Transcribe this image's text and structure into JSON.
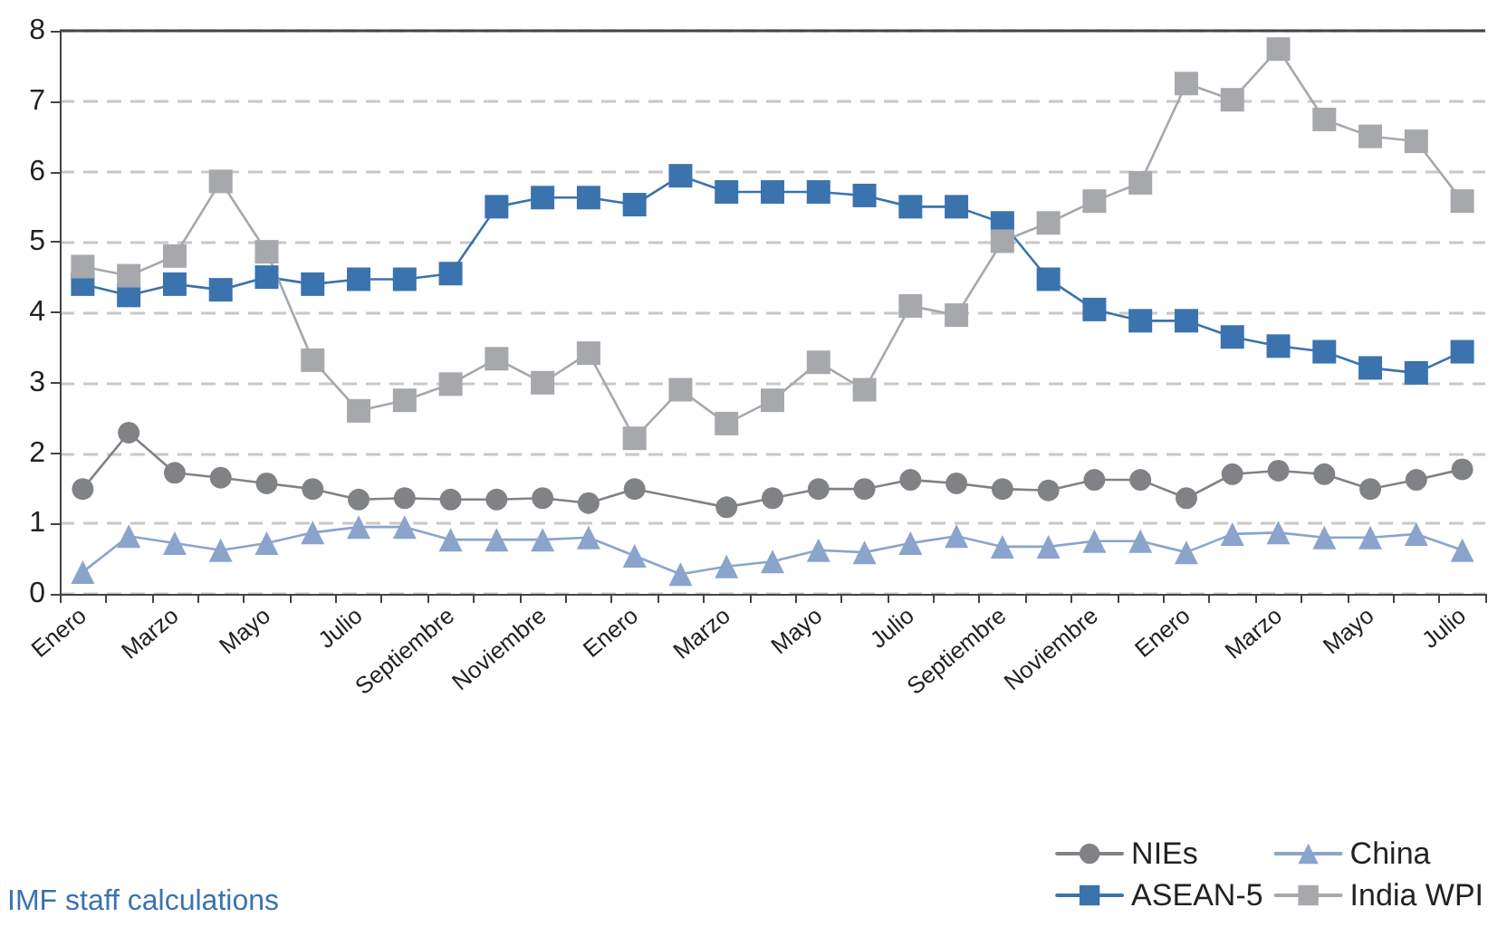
{
  "chart_data": {
    "type": "line",
    "categories": [
      "Enero",
      null,
      "Marzo",
      null,
      "Mayo",
      null,
      "Julio",
      null,
      "Septiembre",
      null,
      "Noviembre",
      null,
      "Enero",
      null,
      "Marzo",
      null,
      "Mayo",
      null,
      "Julio",
      null,
      "Septiembre",
      null,
      "Noviembre",
      null,
      "Enero",
      null,
      "Marzo",
      null,
      "Mayo",
      null,
      "Julio"
    ],
    "series": [
      {
        "name": "NIEs",
        "color": "#808285",
        "marker": "circle",
        "values": [
          1.49,
          2.29,
          1.72,
          1.65,
          1.57,
          1.49,
          1.34,
          1.36,
          1.34,
          1.34,
          1.36,
          1.29,
          1.49,
          null,
          1.23,
          1.36,
          1.49,
          1.49,
          1.62,
          1.57,
          1.49,
          1.47,
          1.62,
          1.62,
          1.36,
          1.7,
          1.75,
          1.7,
          1.49,
          1.62,
          1.77
        ]
      },
      {
        "name": "ASEAN-5",
        "color": "#3b73ae",
        "marker": "square",
        "values": [
          4.4,
          4.24,
          4.4,
          4.32,
          4.5,
          4.4,
          4.47,
          4.47,
          4.55,
          5.5,
          5.63,
          5.63,
          5.53,
          5.94,
          5.71,
          5.71,
          5.71,
          5.66,
          5.5,
          5.5,
          5.27,
          4.47,
          4.04,
          3.88,
          3.88,
          3.65,
          3.52,
          3.44,
          3.21,
          3.14,
          3.44
        ]
      },
      {
        "name": "China",
        "color": "#8aa4cc",
        "marker": "triangle",
        "values": [
          0.31,
          0.82,
          0.72,
          0.62,
          0.72,
          0.87,
          0.95,
          0.95,
          0.77,
          0.77,
          0.77,
          0.8,
          0.54,
          0.28,
          0.39,
          0.46,
          0.62,
          0.59,
          0.72,
          0.82,
          0.67,
          0.67,
          0.75,
          0.75,
          0.59,
          0.85,
          0.87,
          0.8,
          0.8,
          0.85,
          0.62
        ]
      },
      {
        "name": "India WPI",
        "color": "#a7a8ac",
        "marker": "square",
        "values": [
          4.65,
          4.52,
          4.8,
          5.86,
          4.86,
          3.32,
          2.6,
          2.75,
          2.98,
          3.34,
          3.0,
          3.42,
          2.21,
          2.9,
          2.42,
          2.75,
          3.29,
          2.9,
          4.09,
          3.96,
          5.01,
          5.27,
          5.58,
          5.84,
          7.25,
          7.02,
          7.74,
          6.74,
          6.5,
          6.43,
          5.58
        ]
      }
    ],
    "ylim": [
      0,
      8
    ],
    "yticks": [
      0,
      1,
      2,
      3,
      4,
      5,
      6,
      7,
      8
    ],
    "grid": "y",
    "legend": "bottom right",
    "line_style": "solid",
    "annotations": [
      "IMF staff calculations"
    ]
  }
}
